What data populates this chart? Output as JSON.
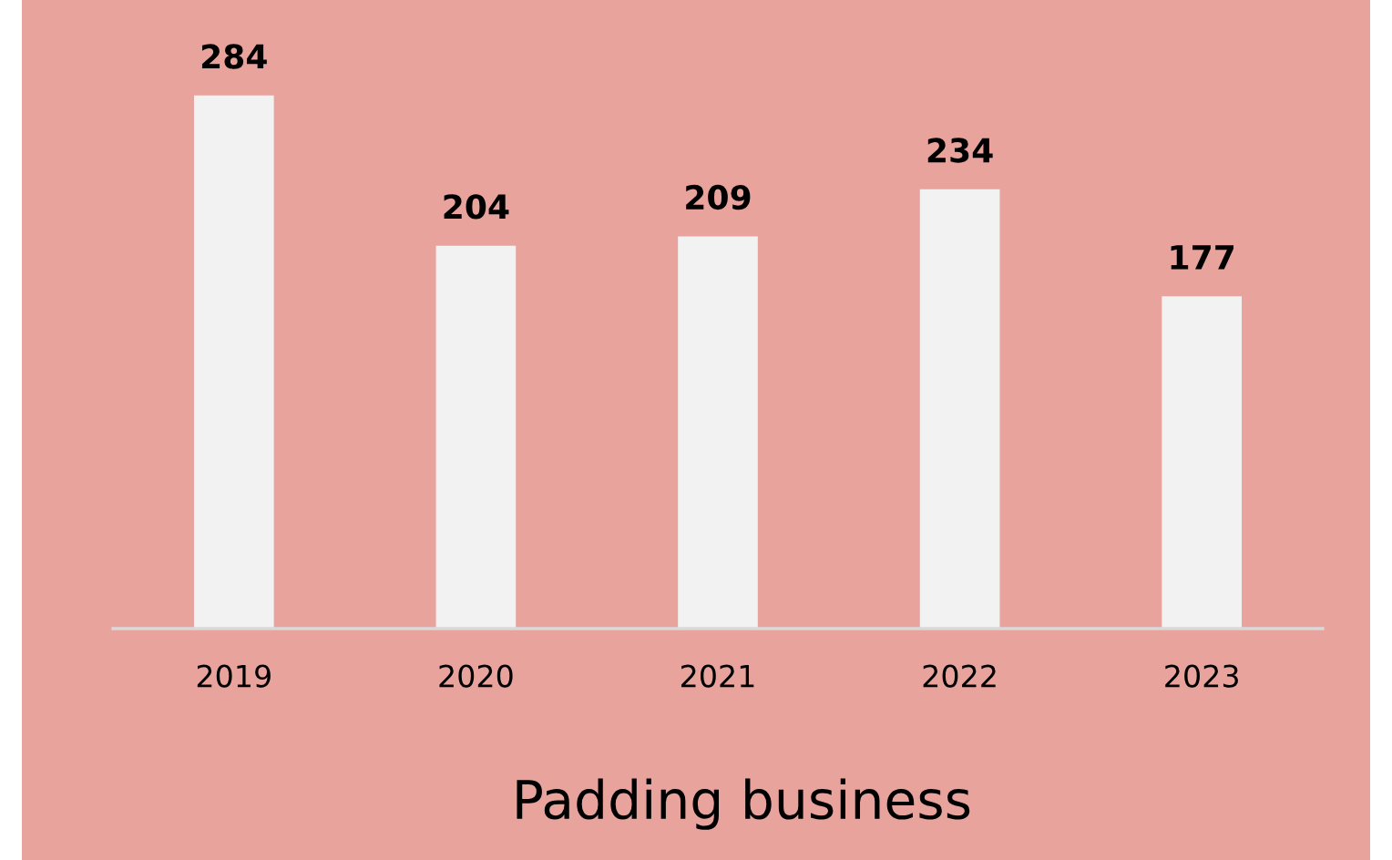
{
  "chart_data": {
    "type": "bar",
    "title": "Padding business",
    "categories": [
      "2019",
      "2020",
      "2021",
      "2022",
      "2023"
    ],
    "values": [
      284,
      204,
      209,
      234,
      177
    ],
    "color": "#f2f2f2",
    "data_labels": true,
    "grid": false,
    "legend": false,
    "tick_labels": "x"
  }
}
